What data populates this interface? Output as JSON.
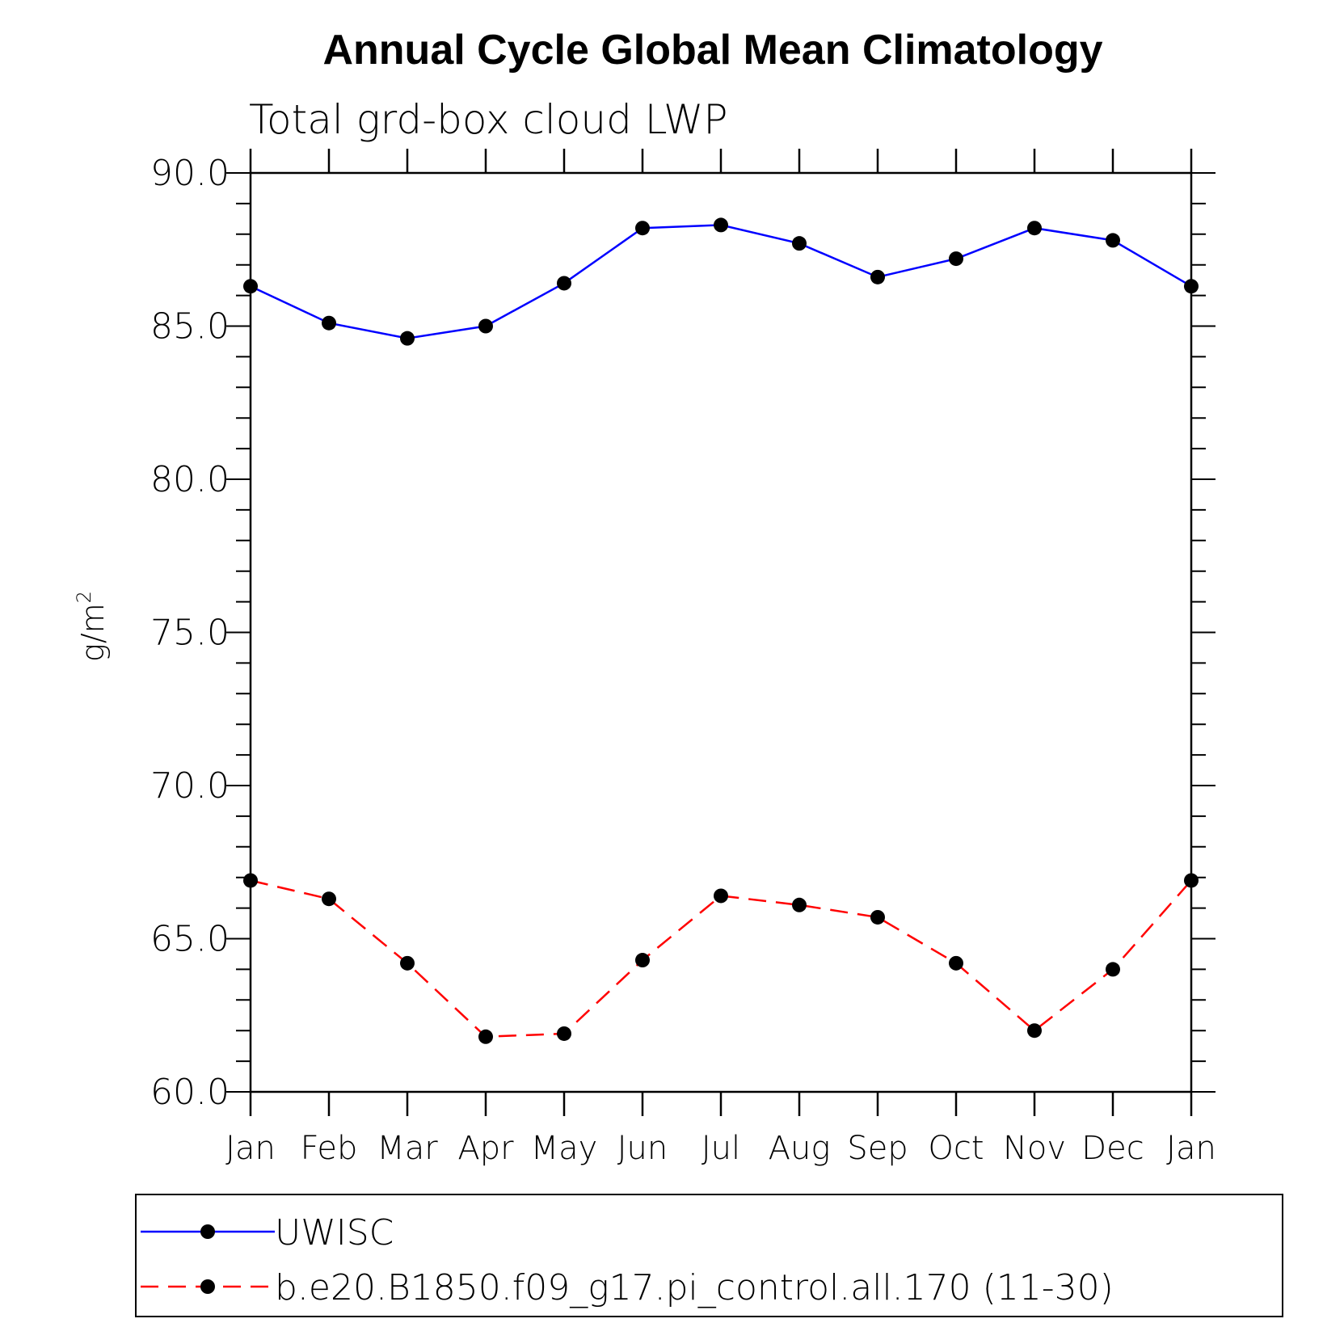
{
  "chart_data": {
    "type": "line",
    "title": "Annual Cycle Global Mean Climatology",
    "subtitle": "Total grd-box cloud LWP",
    "xlabel": "",
    "ylabel": "g/m",
    "ylabel_superscript": "2",
    "categories": [
      "Jan",
      "Feb",
      "Mar",
      "Apr",
      "May",
      "Jun",
      "Jul",
      "Aug",
      "Sep",
      "Oct",
      "Nov",
      "Dec",
      "Jan"
    ],
    "ylim": [
      60.0,
      90.0
    ],
    "yticks": [
      "60.0",
      "65.0",
      "70.0",
      "75.0",
      "80.0",
      "85.0",
      "90.0"
    ],
    "grid": false,
    "legend_position": "bottom",
    "series": [
      {
        "name": "UWISC",
        "color": "#0000ff",
        "line_style": "solid",
        "marker": "filled-circle",
        "values": [
          86.3,
          85.1,
          84.6,
          85.0,
          86.4,
          88.2,
          88.3,
          87.7,
          86.6,
          87.2,
          88.2,
          87.8,
          86.3
        ]
      },
      {
        "name": "b.e20.B1850.f09_g17.pi_control.all.170 (11-30)",
        "color": "#ff0000",
        "line_style": "dashed",
        "marker": "filled-circle",
        "values": [
          66.9,
          66.3,
          64.2,
          61.8,
          61.9,
          64.3,
          66.4,
          66.1,
          65.7,
          64.2,
          62.0,
          64.0,
          66.9
        ]
      }
    ]
  }
}
